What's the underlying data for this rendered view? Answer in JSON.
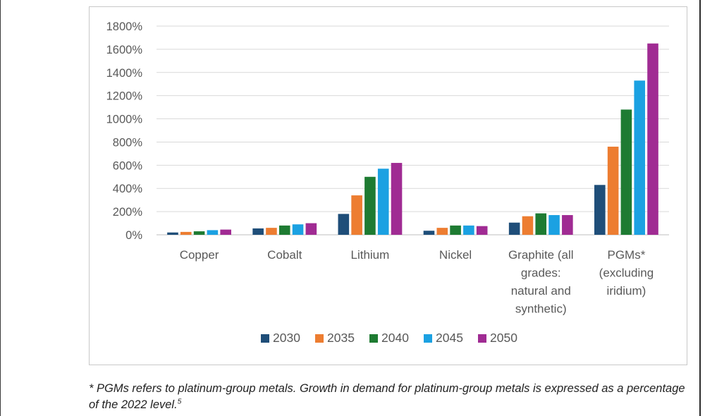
{
  "chart_data": {
    "type": "bar",
    "categories": [
      [
        "Copper"
      ],
      [
        "Cobalt"
      ],
      [
        "Lithium"
      ],
      [
        "Nickel"
      ],
      [
        "Graphite (all",
        "grades:",
        "natural and",
        "synthetic)"
      ],
      [
        "PGMs*",
        "(excluding",
        "iridium)"
      ]
    ],
    "series": [
      {
        "name": "2030",
        "color": "#1f4e79",
        "values": [
          20,
          55,
          180,
          35,
          105,
          430
        ]
      },
      {
        "name": "2035",
        "color": "#ed7d31",
        "values": [
          25,
          60,
          340,
          60,
          160,
          760
        ]
      },
      {
        "name": "2040",
        "color": "#1e7b32",
        "values": [
          30,
          80,
          500,
          80,
          185,
          1080
        ]
      },
      {
        "name": "2045",
        "color": "#1ba1e2",
        "values": [
          40,
          90,
          570,
          80,
          170,
          1330
        ]
      },
      {
        "name": "2050",
        "color": "#a02b93",
        "values": [
          45,
          100,
          620,
          75,
          170,
          1650
        ]
      }
    ],
    "ylim": [
      0,
      1800
    ],
    "y_ticks": [
      "0%",
      "200%",
      "400%",
      "600%",
      "800%",
      "1000%",
      "1200%",
      "1400%",
      "1600%",
      "1800%"
    ],
    "title": "",
    "xlabel": "",
    "ylabel": "",
    "grid": true,
    "legend_position": "bottom"
  },
  "footnote": {
    "text": "* PGMs refers to platinum-group metals. Growth in demand for platinum-group metals is expressed as a percentage of the 2022 level.",
    "ref": "5"
  }
}
